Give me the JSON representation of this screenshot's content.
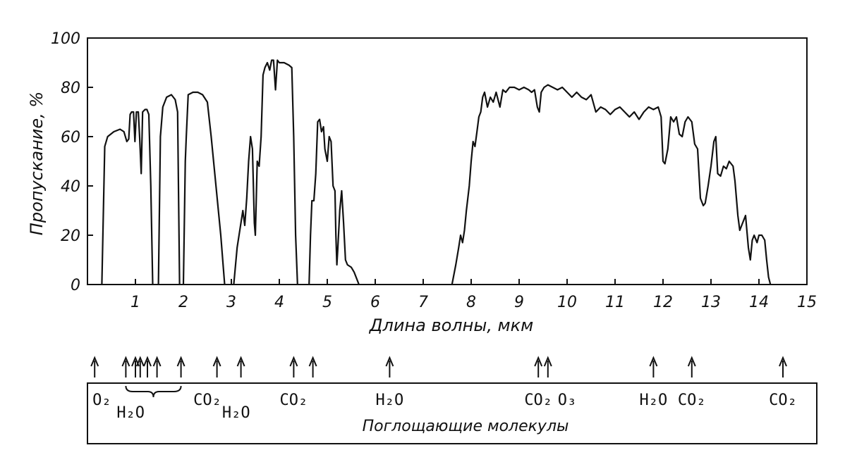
{
  "chart_data": {
    "type": "line",
    "title": "",
    "xlabel": "Длина волны, мкм",
    "ylabel": "Пропускание, %",
    "xlim": [
      0,
      15
    ],
    "ylim": [
      0,
      100
    ],
    "x_ticks": [
      1,
      2,
      3,
      4,
      5,
      6,
      7,
      8,
      9,
      10,
      11,
      12,
      13,
      14,
      15
    ],
    "y_ticks": [
      0,
      20,
      40,
      60,
      80,
      100
    ],
    "grid": false,
    "series": [
      {
        "segments": [
          [
            [
              0.3,
              0
            ],
            [
              0.36,
              56
            ],
            [
              0.42,
              60
            ],
            [
              0.55,
              62
            ],
            [
              0.68,
              63
            ],
            [
              0.76,
              62
            ],
            [
              0.82,
              58
            ],
            [
              0.86,
              59
            ],
            [
              0.89,
              69
            ],
            [
              0.92,
              70
            ],
            [
              0.96,
              70
            ],
            [
              0.99,
              58
            ],
            [
              1.02,
              70
            ],
            [
              1.06,
              70
            ],
            [
              1.09,
              59
            ],
            [
              1.12,
              45
            ],
            [
              1.15,
              70
            ],
            [
              1.2,
              71
            ],
            [
              1.24,
              71
            ],
            [
              1.28,
              69
            ],
            [
              1.32,
              40
            ],
            [
              1.36,
              0
            ]
          ],
          [
            [
              1.48,
              0
            ],
            [
              1.52,
              60
            ],
            [
              1.57,
              72
            ],
            [
              1.65,
              76
            ],
            [
              1.75,
              77
            ],
            [
              1.83,
              75
            ],
            [
              1.88,
              70
            ],
            [
              1.92,
              0
            ]
          ],
          [
            [
              2.0,
              0
            ],
            [
              2.04,
              50
            ],
            [
              2.06,
              60
            ],
            [
              2.1,
              77
            ],
            [
              2.2,
              78
            ],
            [
              2.3,
              78
            ],
            [
              2.4,
              77
            ],
            [
              2.5,
              74
            ],
            [
              2.58,
              60
            ],
            [
              2.68,
              40
            ],
            [
              2.78,
              20
            ],
            [
              2.86,
              0
            ]
          ],
          [
            [
              3.05,
              0
            ],
            [
              3.12,
              15
            ],
            [
              3.2,
              25
            ],
            [
              3.24,
              30
            ],
            [
              3.28,
              24
            ],
            [
              3.32,
              35
            ],
            [
              3.36,
              50
            ],
            [
              3.4,
              60
            ],
            [
              3.44,
              55
            ],
            [
              3.48,
              25
            ],
            [
              3.5,
              20
            ],
            [
              3.54,
              50
            ],
            [
              3.58,
              48
            ],
            [
              3.62,
              60
            ],
            [
              3.66,
              85
            ],
            [
              3.7,
              88
            ],
            [
              3.75,
              90
            ],
            [
              3.8,
              87
            ],
            [
              3.84,
              91
            ],
            [
              3.88,
              91
            ],
            [
              3.92,
              79
            ],
            [
              3.96,
              91
            ],
            [
              4.0,
              90
            ],
            [
              4.1,
              90
            ],
            [
              4.2,
              89
            ],
            [
              4.26,
              88
            ],
            [
              4.3,
              60
            ],
            [
              4.34,
              20
            ],
            [
              4.38,
              0
            ]
          ],
          [
            [
              4.62,
              0
            ],
            [
              4.65,
              20
            ],
            [
              4.68,
              34
            ],
            [
              4.72,
              34
            ],
            [
              4.76,
              45
            ],
            [
              4.8,
              66
            ],
            [
              4.84,
              67
            ],
            [
              4.88,
              62
            ],
            [
              4.92,
              64
            ],
            [
              4.95,
              55
            ],
            [
              5.0,
              50
            ],
            [
              5.04,
              60
            ],
            [
              5.08,
              58
            ],
            [
              5.12,
              40
            ],
            [
              5.16,
              38
            ],
            [
              5.18,
              20
            ],
            [
              5.2,
              8
            ],
            [
              5.22,
              15
            ],
            [
              5.26,
              30
            ],
            [
              5.3,
              38
            ],
            [
              5.34,
              25
            ],
            [
              5.38,
              10
            ],
            [
              5.42,
              8
            ],
            [
              5.5,
              7
            ],
            [
              5.56,
              5
            ],
            [
              5.62,
              2
            ],
            [
              5.66,
              0
            ]
          ]
        ]
      },
      {
        "segments": [
          [
            [
              7.6,
              0
            ],
            [
              7.68,
              8
            ],
            [
              7.74,
              15
            ],
            [
              7.78,
              20
            ],
            [
              7.82,
              17
            ],
            [
              7.86,
              22
            ],
            [
              7.9,
              30
            ],
            [
              7.96,
              40
            ],
            [
              8.0,
              50
            ],
            [
              8.04,
              58
            ],
            [
              8.08,
              56
            ],
            [
              8.12,
              62
            ],
            [
              8.16,
              68
            ],
            [
              8.2,
              70
            ],
            [
              8.24,
              76
            ],
            [
              8.28,
              78
            ],
            [
              8.34,
              72
            ],
            [
              8.4,
              76
            ],
            [
              8.46,
              74
            ],
            [
              8.52,
              78
            ],
            [
              8.6,
              72
            ],
            [
              8.66,
              79
            ],
            [
              8.72,
              78
            ],
            [
              8.8,
              80
            ],
            [
              8.9,
              80
            ],
            [
              9.0,
              79
            ],
            [
              9.1,
              80
            ],
            [
              9.2,
              79
            ],
            [
              9.26,
              78
            ],
            [
              9.32,
              79
            ],
            [
              9.38,
              72
            ],
            [
              9.42,
              70
            ],
            [
              9.46,
              78
            ],
            [
              9.52,
              80
            ],
            [
              9.6,
              81
            ],
            [
              9.7,
              80
            ],
            [
              9.8,
              79
            ],
            [
              9.9,
              80
            ],
            [
              10.0,
              78
            ],
            [
              10.1,
              76
            ],
            [
              10.2,
              78
            ],
            [
              10.3,
              76
            ],
            [
              10.4,
              75
            ],
            [
              10.5,
              77
            ],
            [
              10.6,
              70
            ],
            [
              10.7,
              72
            ],
            [
              10.8,
              71
            ],
            [
              10.9,
              69
            ],
            [
              11.0,
              71
            ],
            [
              11.1,
              72
            ],
            [
              11.2,
              70
            ],
            [
              11.3,
              68
            ],
            [
              11.4,
              70
            ],
            [
              11.5,
              67
            ],
            [
              11.6,
              70
            ],
            [
              11.7,
              72
            ],
            [
              11.8,
              71
            ],
            [
              11.9,
              72
            ],
            [
              11.96,
              68
            ],
            [
              12.0,
              50
            ],
            [
              12.04,
              49
            ],
            [
              12.1,
              55
            ],
            [
              12.16,
              68
            ],
            [
              12.22,
              66
            ],
            [
              12.28,
              68
            ],
            [
              12.34,
              61
            ],
            [
              12.4,
              60
            ],
            [
              12.46,
              66
            ],
            [
              12.52,
              68
            ],
            [
              12.6,
              66
            ],
            [
              12.66,
              57
            ],
            [
              12.72,
              55
            ],
            [
              12.78,
              35
            ],
            [
              12.84,
              32
            ],
            [
              12.88,
              33
            ],
            [
              12.94,
              40
            ],
            [
              13.0,
              48
            ],
            [
              13.06,
              58
            ],
            [
              13.1,
              60
            ],
            [
              13.14,
              45
            ],
            [
              13.2,
              44
            ],
            [
              13.26,
              48
            ],
            [
              13.32,
              47
            ],
            [
              13.38,
              50
            ],
            [
              13.46,
              48
            ],
            [
              13.5,
              42
            ],
            [
              13.56,
              28
            ],
            [
              13.6,
              22
            ],
            [
              13.66,
              25
            ],
            [
              13.72,
              28
            ],
            [
              13.78,
              15
            ],
            [
              13.82,
              10
            ],
            [
              13.86,
              18
            ],
            [
              13.9,
              20
            ],
            [
              13.96,
              17
            ],
            [
              14.0,
              20
            ],
            [
              14.06,
              20
            ],
            [
              14.12,
              18
            ],
            [
              14.16,
              10
            ],
            [
              14.2,
              3
            ],
            [
              14.24,
              0
            ]
          ]
        ]
      }
    ],
    "absorbers": {
      "caption": "Поглощающие молекулы",
      "arrows_x": [
        0.15,
        0.8,
        1.0,
        1.1,
        1.25,
        1.45,
        1.95,
        2.7,
        3.2,
        4.3,
        4.7,
        6.3,
        9.4,
        9.6,
        11.8,
        12.6,
        14.5
      ],
      "labels": [
        {
          "x": 0.3,
          "text": "O₂",
          "row": 1
        },
        {
          "x": 0.9,
          "text": "H₂O",
          "row": 2
        },
        {
          "x": 2.5,
          "text": "CO₂",
          "row": 1
        },
        {
          "x": 3.1,
          "text": "H₂O",
          "row": 2
        },
        {
          "x": 4.3,
          "text": "CO₂",
          "row": 1
        },
        {
          "x": 6.3,
          "text": "H₂O",
          "row": 1
        },
        {
          "x": 9.4,
          "text": "CO₂",
          "row": 1
        },
        {
          "x": 10.0,
          "text": "O₃",
          "row": 1
        },
        {
          "x": 11.8,
          "text": "H₂O",
          "row": 1
        },
        {
          "x": 12.6,
          "text": "CO₂",
          "row": 1
        },
        {
          "x": 14.5,
          "text": "CO₂",
          "row": 1
        }
      ]
    }
  }
}
